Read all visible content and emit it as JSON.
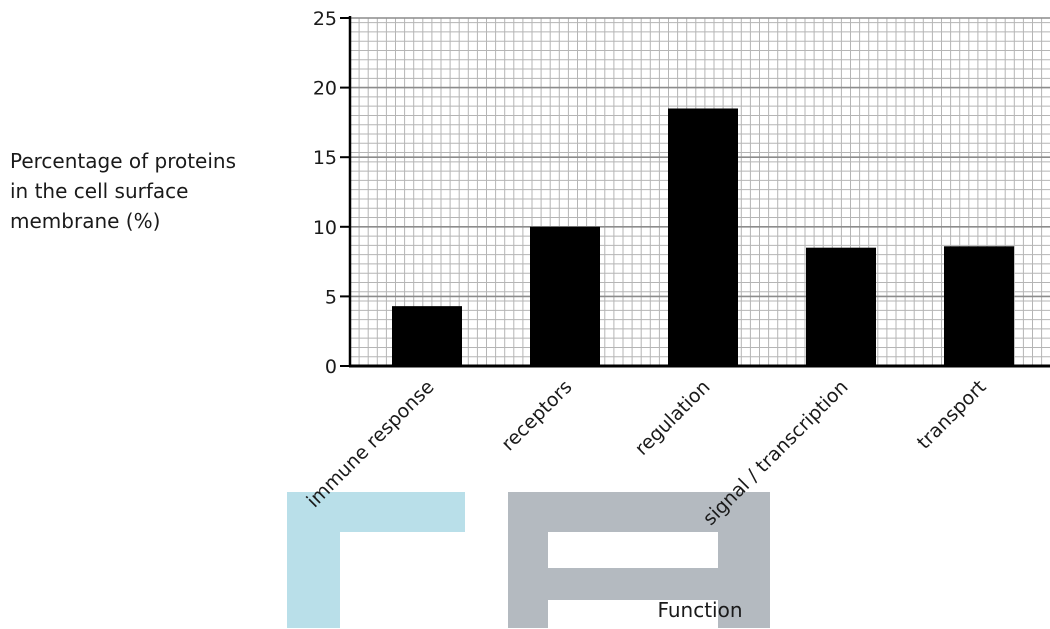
{
  "chart_data": {
    "type": "bar",
    "categories": [
      "immune response",
      "receptors",
      "regulation",
      "signal / transcription",
      "transport"
    ],
    "values": [
      4.3,
      10.0,
      18.5,
      8.5,
      8.6
    ],
    "ylabel": "Percentage of proteins in the cell surface membrane (%)",
    "ylabel_lines": [
      "Percentage of proteins",
      "in the cell surface",
      "membrane (%)"
    ],
    "xlabel": "Function",
    "ylim": [
      0,
      25
    ],
    "yticks": [
      "0",
      "5",
      "10",
      "15",
      "20",
      "25"
    ],
    "ytick_values": [
      0,
      5,
      10,
      15,
      20,
      25
    ],
    "grid": true,
    "colors": {
      "bar": "#000000",
      "grid": "#b5b5b5",
      "axis": "#000000",
      "watermark_blue": "#b9dfe9",
      "watermark_gray": "#b4bac0"
    }
  }
}
